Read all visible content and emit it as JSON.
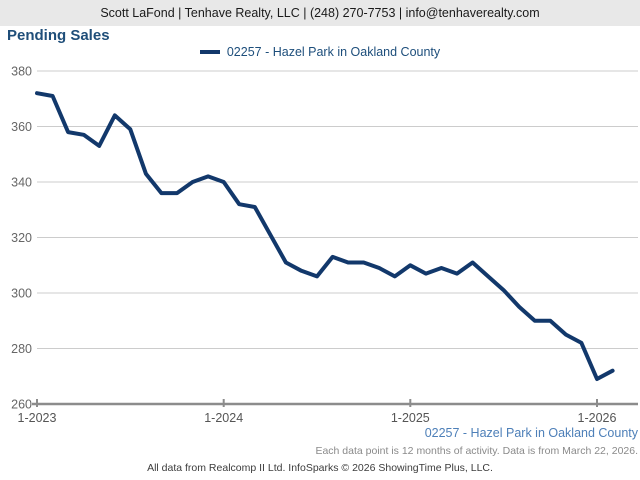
{
  "header": {
    "contact_line": "Scott LaFond | Tenhave Realty, LLC | (248) 270-7753 | info@tenhaverealty.com"
  },
  "page": {
    "title": "Pending Sales"
  },
  "legend": {
    "series_label": "02257 - Hazel Park in Oakland County"
  },
  "chart_data": {
    "type": "line",
    "title": "Pending Sales",
    "xlabel": "",
    "ylabel": "",
    "ylim": [
      260,
      380
    ],
    "yticks": [
      380,
      360,
      340,
      320,
      300,
      280,
      260
    ],
    "xtick_labels": [
      "1-2023",
      "1-2024",
      "1-2025",
      "1-2026"
    ],
    "xtick_month_indices": [
      0,
      12,
      24,
      36
    ],
    "grid": "horizontal-only",
    "legend_position": "top-center",
    "x_months": [
      "1-2023",
      "2-2023",
      "3-2023",
      "4-2023",
      "5-2023",
      "6-2023",
      "7-2023",
      "8-2023",
      "9-2023",
      "10-2023",
      "11-2023",
      "12-2023",
      "1-2024",
      "2-2024",
      "3-2024",
      "4-2024",
      "5-2024",
      "6-2024",
      "7-2024",
      "8-2024",
      "9-2024",
      "10-2024",
      "11-2024",
      "12-2024",
      "1-2025",
      "2-2025",
      "3-2025",
      "4-2025",
      "5-2025",
      "6-2025",
      "7-2025",
      "8-2025",
      "9-2025",
      "10-2025",
      "11-2025",
      "12-2025",
      "1-2026",
      "2-2026"
    ],
    "series": [
      {
        "name": "02257 - Hazel Park in Oakland County",
        "color": "#12386b",
        "values": [
          372,
          371,
          358,
          357,
          353,
          364,
          359,
          343,
          336,
          336,
          340,
          342,
          340,
          332,
          331,
          321,
          311,
          308,
          306,
          313,
          311,
          311,
          309,
          306,
          310,
          307,
          309,
          307,
          311,
          306,
          301,
          295,
          290,
          290,
          285,
          282,
          269,
          272
        ]
      }
    ]
  },
  "footnotes": {
    "series_caption": "02257 - Hazel Park in Oakland County",
    "data_note": "Each data point is 12 months of activity. Data is from March 22, 2026.",
    "attribution": "All data from Realcomp II Ltd. InfoSparks © 2026 ShowingTime Plus, LLC."
  },
  "colors": {
    "accent_navy": "#12386b",
    "title_blue": "#1f4e79",
    "legend_text_blue": "#1d4e7b",
    "caption_blue": "#4d7fb8",
    "header_bg": "#e8e8e8",
    "grid_line": "#cccccc",
    "axis_line": "#8c8c8c",
    "y_tick_text": "#666666",
    "x_tick_text": "#555555",
    "note_gray": "#8a8a8a",
    "attribution_gray": "#3c3c3c"
  }
}
